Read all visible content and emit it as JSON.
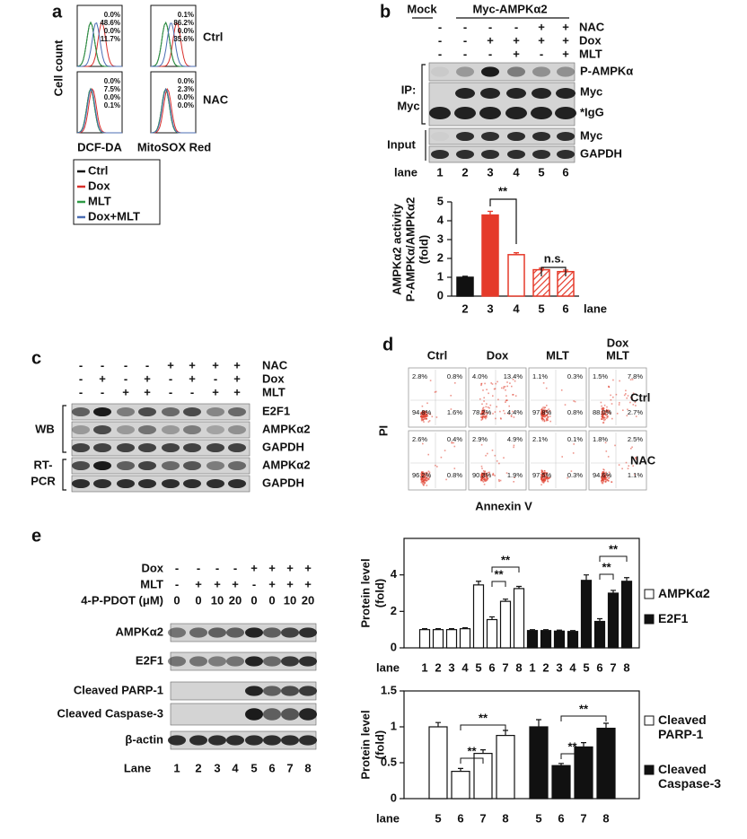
{
  "panel_a": {
    "label": "a",
    "y_label": "Cell count",
    "x_labels": [
      "DCF-DA",
      "MitoSOX Red"
    ],
    "row_labels": [
      "Ctrl",
      "NAC"
    ],
    "percentages": [
      [
        [
          "0.0%",
          "48.6%",
          "0.0%",
          "11.7%"
        ],
        [
          "0.1%",
          "86.2%",
          "0.0%",
          "35.6%"
        ]
      ],
      [
        [
          "0.0%",
          "7.5%",
          "0.0%",
          "0.1%"
        ],
        [
          "0.0%",
          "2.3%",
          "0.0%",
          "0.0%"
        ]
      ]
    ],
    "legend": [
      {
        "name": "Ctrl",
        "color": "#111111"
      },
      {
        "name": "Dox",
        "color": "#d9302b"
      },
      {
        "name": "MLT",
        "color": "#2e9a46"
      },
      {
        "name": "Dox+MLT",
        "color": "#4b6db3"
      }
    ]
  },
  "panel_b": {
    "label": "b",
    "header": {
      "mock": "Mock",
      "construct": "Myc-AMPKα2"
    },
    "treatments": [
      {
        "name": "NAC",
        "values": [
          "-",
          "-",
          "-",
          "-",
          "+",
          "+"
        ]
      },
      {
        "name": "Dox",
        "values": [
          "-",
          "-",
          "+",
          "+",
          "+",
          "+"
        ]
      },
      {
        "name": "MLT",
        "values": [
          "-",
          "-",
          "-",
          "+",
          "-",
          "+"
        ]
      }
    ],
    "blot_labels": [
      "P-AMPKα",
      "Myc",
      "*IgG",
      "Myc",
      "GAPDH"
    ],
    "group_labels": {
      "ip": [
        "IP:",
        "Myc"
      ],
      "input": "Input"
    },
    "lane_label": "lane",
    "lanes": [
      "1",
      "2",
      "3",
      "4",
      "5",
      "6"
    ],
    "chart": {
      "type": "bar",
      "y_label": [
        "AMPKα2 activity",
        "P-AMPKα/AMPKα2",
        "(fold)"
      ],
      "x_label": "lane",
      "categories": [
        "2",
        "3",
        "4",
        "5",
        "6"
      ],
      "values": [
        1.0,
        4.3,
        2.2,
        1.4,
        1.3
      ],
      "errors": [
        0.05,
        0.2,
        0.1,
        0.08,
        0.08
      ],
      "colors": [
        "#111111",
        "#e53a2a",
        "#e53a2a",
        "#e53a2a",
        "#e53a2a"
      ],
      "styles": [
        "solid",
        "solid",
        "open",
        "hatched",
        "hatched"
      ],
      "ylim": [
        0,
        5
      ],
      "yticks": [
        0,
        1,
        2,
        3,
        4,
        5
      ],
      "annotations": [
        "**",
        "n.s."
      ]
    }
  },
  "panel_c": {
    "label": "c",
    "treatments": [
      {
        "name": "NAC",
        "values": [
          "-",
          "-",
          "-",
          "-",
          "+",
          "+",
          "+",
          "+"
        ]
      },
      {
        "name": "Dox",
        "values": [
          "-",
          "+",
          "-",
          "+",
          "-",
          "+",
          "-",
          "+"
        ]
      },
      {
        "name": "MLT",
        "values": [
          "-",
          "-",
          "+",
          "+",
          "-",
          "-",
          "+",
          "+"
        ]
      }
    ],
    "group_labels": {
      "wb": "WB",
      "rtpcr": [
        "RT-",
        "PCR"
      ]
    },
    "blot_labels": [
      "E2F1",
      "AMPKα2",
      "GAPDH",
      "AMPKα2",
      "GAPDH"
    ]
  },
  "panel_d": {
    "label": "d",
    "col_labels": [
      [
        "Ctrl"
      ],
      [
        "Dox"
      ],
      [
        "MLT"
      ],
      [
        "Dox",
        "MLT"
      ]
    ],
    "row_labels": [
      "Ctrl",
      "NAC"
    ],
    "y_label": "PI",
    "x_label": "Annexin V",
    "plots": [
      [
        [
          "2.8%",
          "0.8%",
          "94.8%",
          "1.6%"
        ],
        [
          "4.0%",
          "13.4%",
          "78.2%",
          "4.4%"
        ],
        [
          "1.1%",
          "0.3%",
          "97.8%",
          "0.8%"
        ],
        [
          "1.5%",
          "7.8%",
          "88.0%",
          "2.7%"
        ]
      ],
      [
        [
          "2.6%",
          "0.4%",
          "96.2%",
          "0.8%"
        ],
        [
          "2.9%",
          "4.9%",
          "90.3%",
          "1.9%"
        ],
        [
          "2.1%",
          "0.1%",
          "97.5%",
          "0.3%"
        ],
        [
          "1.8%",
          "2.5%",
          "94.6%",
          "1.1%"
        ]
      ]
    ]
  },
  "panel_e": {
    "label": "e",
    "treatments": [
      {
        "name": "Dox",
        "values": [
          "-",
          "-",
          "-",
          "-",
          "+",
          "+",
          "+",
          "+"
        ]
      },
      {
        "name": "MLT",
        "values": [
          "-",
          "+",
          "+",
          "+",
          "-",
          "+",
          "+",
          "+"
        ]
      },
      {
        "name": "4-P-PDOT (μM)",
        "values": [
          0,
          0,
          10,
          20,
          0,
          0,
          10,
          20
        ]
      }
    ],
    "blot_labels": [
      "AMPKα2",
      "E2F1",
      "Cleaved PARP-1",
      "Cleaved Caspase-3",
      "β-actin"
    ],
    "lane_label": "Lane",
    "lanes": [
      "1",
      "2",
      "3",
      "4",
      "5",
      "6",
      "7",
      "8"
    ],
    "charts": [
      {
        "type": "bar",
        "y_label": [
          "Protein level",
          "(fold)"
        ],
        "x_label": "lane",
        "categories": [
          "1",
          "2",
          "3",
          "4",
          "5",
          "6",
          "7",
          "8"
        ],
        "series": [
          {
            "name": "AMPKα2",
            "color": "#ffffff",
            "values": [
              1.0,
              1.0,
              1.0,
              1.05,
              3.45,
              1.55,
              2.55,
              3.25
            ],
            "errors": [
              0.05,
              0.05,
              0.05,
              0.05,
              0.2,
              0.15,
              0.12,
              0.12
            ]
          },
          {
            "name": "E2F1",
            "color": "#111111",
            "values": [
              0.95,
              0.95,
              0.92,
              0.9,
              3.7,
              1.45,
              3.0,
              3.65
            ],
            "errors": [
              0.05,
              0.05,
              0.05,
              0.05,
              0.3,
              0.15,
              0.15,
              0.2
            ]
          }
        ],
        "ylim": [
          0,
          6
        ],
        "yticks": [
          0,
          2,
          4
        ],
        "annotations": [
          "**",
          "**",
          "**",
          "**"
        ]
      },
      {
        "type": "bar",
        "y_label": [
          "Protein level",
          "(fold)"
        ],
        "x_label": "lane",
        "categories": [
          "5",
          "6",
          "7",
          "8"
        ],
        "series": [
          {
            "name": "Cleaved PARP-1",
            "color": "#ffffff",
            "values": [
              1.0,
              0.38,
              0.63,
              0.88
            ],
            "errors": [
              0.06,
              0.04,
              0.05,
              0.07
            ]
          },
          {
            "name": "Cleaved Caspase-3",
            "color": "#111111",
            "values": [
              1.0,
              0.46,
              0.72,
              0.98
            ],
            "errors": [
              0.1,
              0.03,
              0.06,
              0.07
            ]
          }
        ],
        "ylim": [
          0,
          1.5
        ],
        "yticks": [
          0,
          0.5,
          1,
          1.5
        ],
        "annotations": [
          "**",
          "**",
          "**",
          "**"
        ]
      }
    ]
  }
}
